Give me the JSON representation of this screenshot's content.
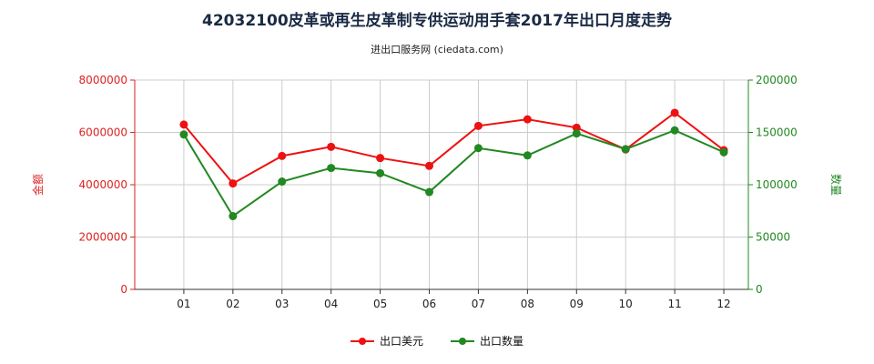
{
  "chart_data": {
    "type": "line",
    "title": "42032100皮革或再生皮革制专供运动用手套2017年出口月度走势",
    "subtitle": "进出口服务网 (ciedata.com)",
    "categories": [
      "01",
      "02",
      "03",
      "04",
      "05",
      "06",
      "07",
      "08",
      "09",
      "10",
      "11",
      "12"
    ],
    "y_left": {
      "label": "金额",
      "ylim": [
        0,
        8000000
      ],
      "ticks": [
        "0",
        "2000000",
        "4000000",
        "6000000",
        "8000000"
      ],
      "color": "#dd2222"
    },
    "y_right": {
      "label": "数量",
      "ylim": [
        0,
        200000
      ],
      "ticks": [
        "0",
        "50000",
        "100000",
        "150000",
        "200000"
      ],
      "color": "#228822"
    },
    "series": [
      {
        "name": "出口美元",
        "axis": "left",
        "color": "#ee1111",
        "values": [
          6300000,
          4050000,
          5100000,
          5450000,
          5020000,
          4720000,
          6250000,
          6500000,
          6180000,
          5350000,
          6750000,
          5320000
        ]
      },
      {
        "name": "出口数量",
        "axis": "right",
        "color": "#228822",
        "values": [
          148000,
          70000,
          103000,
          116000,
          111000,
          93000,
          135000,
          128000,
          149000,
          134000,
          152000,
          131000
        ]
      }
    ],
    "legend_position": "bottom",
    "grid": true
  }
}
